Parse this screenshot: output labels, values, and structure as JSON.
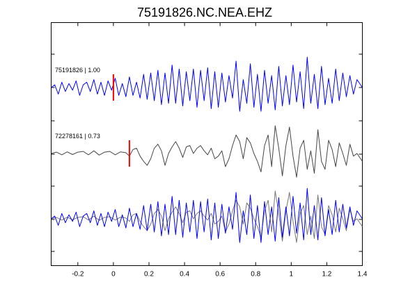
{
  "chart_data": {
    "type": "line",
    "title": "75191826.NC.NEA.EHZ",
    "xlabel": "",
    "ylabel": "",
    "xlim": [
      -0.35,
      1.4
    ],
    "x_ticks": [
      -0.2,
      0,
      0.2,
      0.4,
      0.6,
      0.8,
      1,
      1.2,
      1.4
    ],
    "x_tick_labels": [
      "-0.2",
      "0",
      "0.2",
      "0.4",
      "0.6",
      "0.8",
      "1",
      "1.2",
      "1.4"
    ],
    "grid": false,
    "legend": "none",
    "traces": [
      {
        "label": "75191826 | 1.00",
        "color": "#0000ff",
        "pick_time": 0.0,
        "points": [
          [
            -0.35,
            0
          ],
          [
            -0.33,
            0.1
          ],
          [
            -0.31,
            -0.25
          ],
          [
            -0.29,
            0.2
          ],
          [
            -0.27,
            -0.15
          ],
          [
            -0.25,
            0.15
          ],
          [
            -0.23,
            -0.1
          ],
          [
            -0.21,
            0.25
          ],
          [
            -0.19,
            -0.3
          ],
          [
            -0.17,
            0.1
          ],
          [
            -0.15,
            0.2
          ],
          [
            -0.13,
            -0.15
          ],
          [
            -0.11,
            0.3
          ],
          [
            -0.09,
            -0.25
          ],
          [
            -0.07,
            0.2
          ],
          [
            -0.05,
            -0.3
          ],
          [
            -0.03,
            0.25
          ],
          [
            -0.01,
            -0.1
          ],
          [
            0.01,
            0.35
          ],
          [
            0.03,
            -0.3
          ],
          [
            0.05,
            0.15
          ],
          [
            0.07,
            -0.35
          ],
          [
            0.09,
            0.4
          ],
          [
            0.11,
            -0.3
          ],
          [
            0.13,
            0.2
          ],
          [
            0.15,
            -0.4
          ],
          [
            0.17,
            0.5
          ],
          [
            0.19,
            -0.45
          ],
          [
            0.21,
            0.55
          ],
          [
            0.23,
            -0.5
          ],
          [
            0.25,
            0.65
          ],
          [
            0.27,
            -0.65
          ],
          [
            0.29,
            0.55
          ],
          [
            0.31,
            -0.6
          ],
          [
            0.33,
            0.85
          ],
          [
            0.35,
            -0.6
          ],
          [
            0.37,
            0.7
          ],
          [
            0.39,
            -0.7
          ],
          [
            0.41,
            0.6
          ],
          [
            0.43,
            -0.5
          ],
          [
            0.45,
            0.7
          ],
          [
            0.47,
            -0.75
          ],
          [
            0.49,
            0.65
          ],
          [
            0.51,
            -0.5
          ],
          [
            0.53,
            0.75
          ],
          [
            0.55,
            -0.8
          ],
          [
            0.57,
            0.6
          ],
          [
            0.59,
            -0.75
          ],
          [
            0.61,
            0.55
          ],
          [
            0.63,
            -0.55
          ],
          [
            0.65,
            0.45
          ],
          [
            0.67,
            -0.4
          ],
          [
            0.69,
            1.0
          ],
          [
            0.71,
            -0.9
          ],
          [
            0.73,
            0.3
          ],
          [
            0.75,
            -0.6
          ],
          [
            0.77,
            0.9
          ],
          [
            0.79,
            -0.75
          ],
          [
            0.81,
            0.5
          ],
          [
            0.83,
            -0.9
          ],
          [
            0.85,
            0.65
          ],
          [
            0.87,
            -0.6
          ],
          [
            0.89,
            0.45
          ],
          [
            0.91,
            -0.85
          ],
          [
            0.93,
            0.8
          ],
          [
            0.95,
            -0.7
          ],
          [
            0.97,
            0.45
          ],
          [
            0.99,
            -0.65
          ],
          [
            1.01,
            0.85
          ],
          [
            1.03,
            -0.55
          ],
          [
            1.05,
            0.6
          ],
          [
            1.07,
            -0.8
          ],
          [
            1.09,
            1.15
          ],
          [
            1.11,
            -0.6
          ],
          [
            1.13,
            0.5
          ],
          [
            1.15,
            -0.8
          ],
          [
            1.17,
            0.8
          ],
          [
            1.19,
            -0.65
          ],
          [
            1.21,
            0.35
          ],
          [
            1.23,
            -0.6
          ],
          [
            1.25,
            0.7
          ],
          [
            1.27,
            -0.5
          ],
          [
            1.29,
            0.55
          ],
          [
            1.31,
            -0.35
          ],
          [
            1.33,
            0.45
          ],
          [
            1.35,
            -0.25
          ],
          [
            1.37,
            0.3
          ],
          [
            1.4,
            0
          ]
        ]
      },
      {
        "label": "72278161 | 0.73",
        "color": "#444444",
        "pick_time": 0.09,
        "points": [
          [
            -0.35,
            0
          ],
          [
            -0.32,
            0.05
          ],
          [
            -0.29,
            -0.05
          ],
          [
            -0.26,
            0.06
          ],
          [
            -0.23,
            -0.04
          ],
          [
            -0.2,
            0.05
          ],
          [
            -0.17,
            0.08
          ],
          [
            -0.14,
            -0.05
          ],
          [
            -0.11,
            0.1
          ],
          [
            -0.08,
            -0.06
          ],
          [
            -0.05,
            0.05
          ],
          [
            -0.02,
            0.08
          ],
          [
            0.01,
            -0.05
          ],
          [
            0.04,
            0.06
          ],
          [
            0.07,
            0.03
          ],
          [
            0.09,
            -0.1
          ],
          [
            0.11,
            0.15
          ],
          [
            0.13,
            0.2
          ],
          [
            0.15,
            -0.1
          ],
          [
            0.17,
            -0.3
          ],
          [
            0.19,
            -0.45
          ],
          [
            0.21,
            -0.2
          ],
          [
            0.23,
            0.2
          ],
          [
            0.25,
            0.35
          ],
          [
            0.27,
            0.1
          ],
          [
            0.29,
            -0.45
          ],
          [
            0.31,
            0.0
          ],
          [
            0.33,
            0.25
          ],
          [
            0.35,
            0.45
          ],
          [
            0.37,
            0.2
          ],
          [
            0.39,
            -0.15
          ],
          [
            0.41,
            0.25
          ],
          [
            0.43,
            0.3
          ],
          [
            0.45,
            0.0
          ],
          [
            0.47,
            0.2
          ],
          [
            0.49,
            0.3
          ],
          [
            0.51,
            0.1
          ],
          [
            0.53,
            -0.05
          ],
          [
            0.55,
            0.2
          ],
          [
            0.57,
            -0.2
          ],
          [
            0.59,
            -0.1
          ],
          [
            0.61,
            0.1
          ],
          [
            0.63,
            -0.5
          ],
          [
            0.65,
            -0.2
          ],
          [
            0.67,
            0.3
          ],
          [
            0.69,
            0.7
          ],
          [
            0.71,
            0.45
          ],
          [
            0.73,
            -0.2
          ],
          [
            0.75,
            0.6
          ],
          [
            0.77,
            0.4
          ],
          [
            0.79,
            0.0
          ],
          [
            0.81,
            -0.3
          ],
          [
            0.83,
            -0.7
          ],
          [
            0.85,
            0.3
          ],
          [
            0.87,
            0.7
          ],
          [
            0.89,
            -0.5
          ],
          [
            0.91,
            1.05
          ],
          [
            0.93,
            0.2
          ],
          [
            0.95,
            -0.85
          ],
          [
            0.97,
            0.3
          ],
          [
            0.99,
            1.0
          ],
          [
            1.01,
            -0.1
          ],
          [
            1.03,
            -0.9
          ],
          [
            1.05,
            0.2
          ],
          [
            1.07,
            0.5
          ],
          [
            1.09,
            -0.6
          ],
          [
            1.11,
            0.1
          ],
          [
            1.13,
            -0.75
          ],
          [
            1.15,
            0.9
          ],
          [
            1.17,
            -0.3
          ],
          [
            1.19,
            -0.6
          ],
          [
            1.21,
            0.5
          ],
          [
            1.23,
            0.15
          ],
          [
            1.25,
            -0.5
          ],
          [
            1.27,
            0.4
          ],
          [
            1.29,
            0.0
          ],
          [
            1.31,
            -0.45
          ],
          [
            1.33,
            0.35
          ],
          [
            1.35,
            -0.1
          ],
          [
            1.37,
            0.0
          ],
          [
            1.4,
            -0.3
          ]
        ]
      }
    ]
  }
}
